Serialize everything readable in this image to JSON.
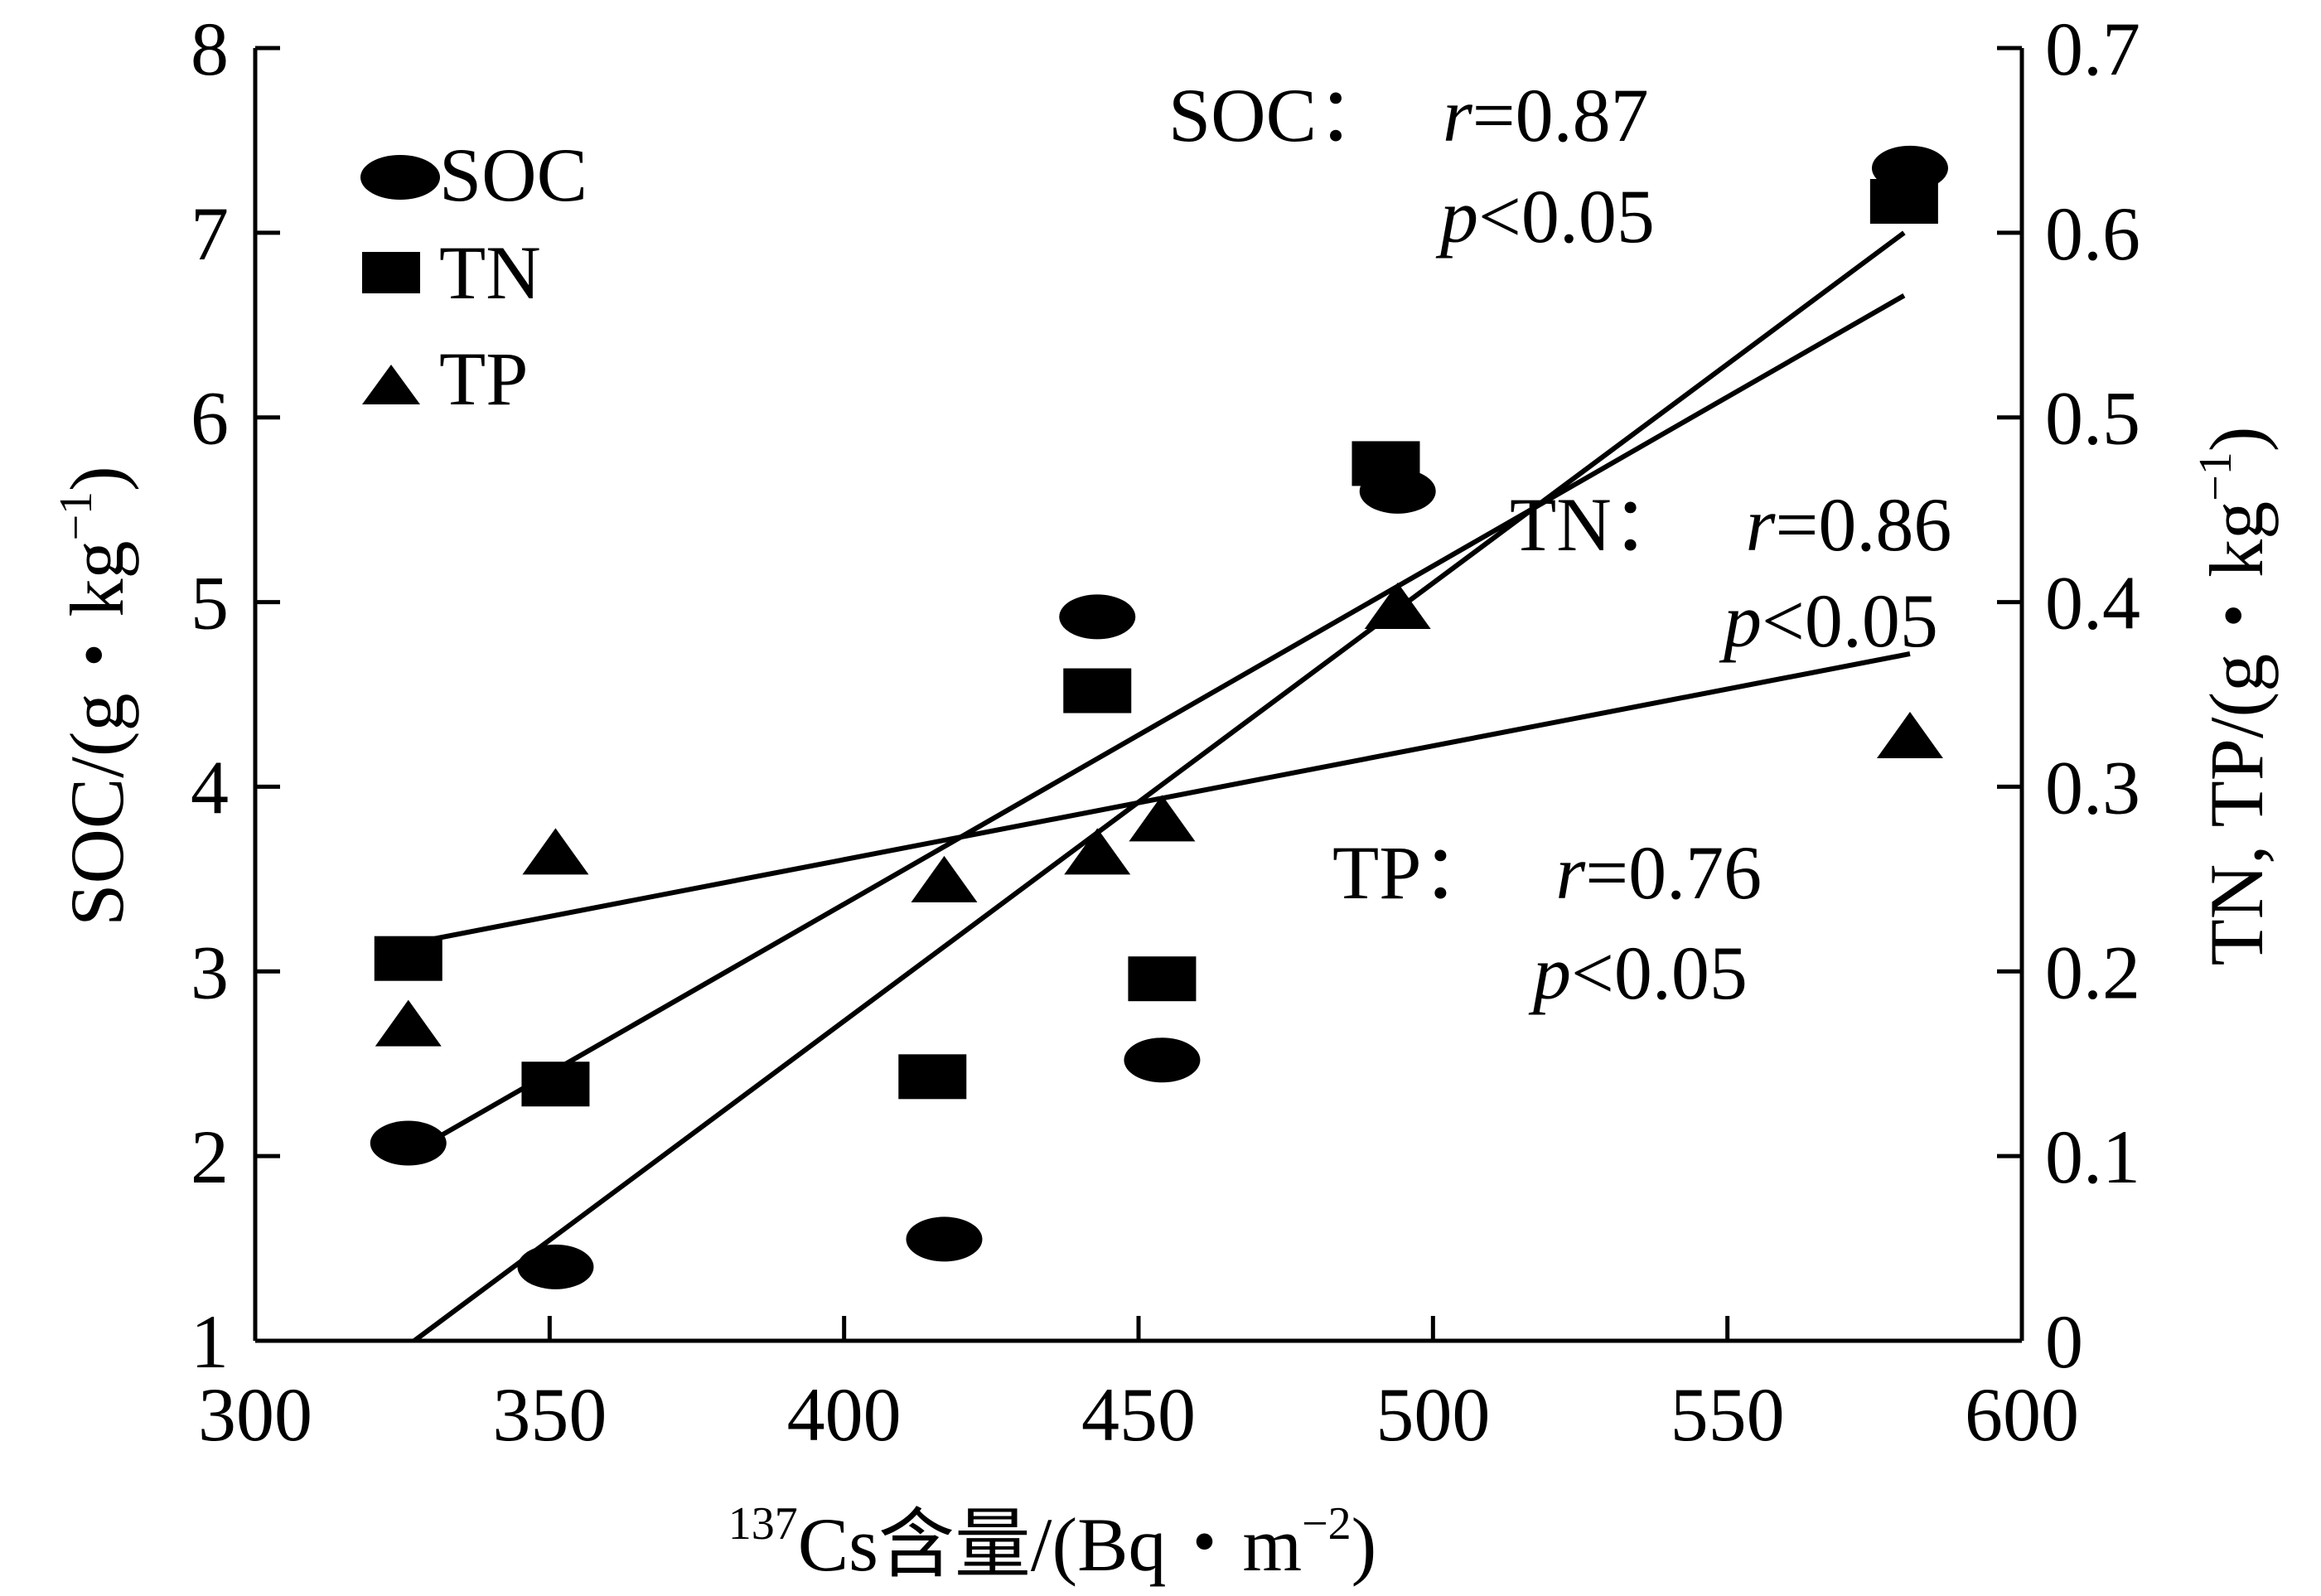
{
  "chart_data": {
    "type": "scatter",
    "x_axis": {
      "label_sup": "137",
      "label_main": "Cs含量/(Bq・m",
      "label_exp": "−2",
      "label_end": ")",
      "range": [
        300,
        600
      ],
      "ticks": [
        300,
        350,
        400,
        450,
        500,
        550,
        600
      ]
    },
    "y_left": {
      "label_main": "SOC/(g・kg",
      "label_exp": "−1",
      "label_end": ")",
      "range": [
        1,
        8
      ],
      "ticks": [
        1,
        2,
        3,
        4,
        5,
        6,
        7,
        8
      ]
    },
    "y_right": {
      "label_main": "TN, TP/(g・kg",
      "label_exp": "−1",
      "label_end": ")",
      "range": [
        0,
        0.7
      ],
      "ticks": [
        "0",
        "0.1",
        "0.2",
        "0.3",
        "0.4",
        "0.5",
        "0.6",
        "0.7"
      ]
    },
    "legend": {
      "placement": "top-left"
    },
    "series": [
      {
        "name": "SOC",
        "marker": "ellipse",
        "axis": "left",
        "x": [
          326,
          351,
          417,
          443,
          454,
          494,
          581
        ],
        "y": [
          2.07,
          1.4,
          1.55,
          4.92,
          2.52,
          5.6,
          7.35
        ],
        "fit": {
          "x": [
            327,
            580
          ],
          "y": [
            1.0,
            7.0
          ]
        },
        "annotation": {
          "name": "SOC：",
          "r_sym": "r",
          "r_val": "=0.87",
          "p_sym": "p",
          "p_val": "<0.05"
        }
      },
      {
        "name": "TN",
        "marker": "square",
        "axis": "right",
        "x": [
          326,
          351,
          415,
          443,
          454,
          492,
          580
        ],
        "y": [
          0.207,
          0.139,
          0.143,
          0.352,
          0.196,
          0.475,
          0.617
        ],
        "fit": {
          "x": [
            326,
            580
          ],
          "y": [
            0.101,
            0.566
          ]
        },
        "annotation": {
          "name": "TN：",
          "r_sym": "r",
          "r_val": "=0.86",
          "p_sym": "p",
          "p_val": "<0.05"
        }
      },
      {
        "name": "TP",
        "marker": "triangle",
        "axis": "right",
        "x": [
          326,
          351,
          417,
          443,
          454,
          494,
          581
        ],
        "y": [
          0.172,
          0.265,
          0.25,
          0.265,
          0.283,
          0.398,
          0.328
        ],
        "fit": {
          "x": [
            326,
            581
          ],
          "y": [
            0.215,
            0.372
          ]
        },
        "annotation": {
          "name": "TP：",
          "r_sym": "r",
          "r_val": "=0.76",
          "p_sym": "p",
          "p_val": "<0.05"
        }
      }
    ]
  }
}
